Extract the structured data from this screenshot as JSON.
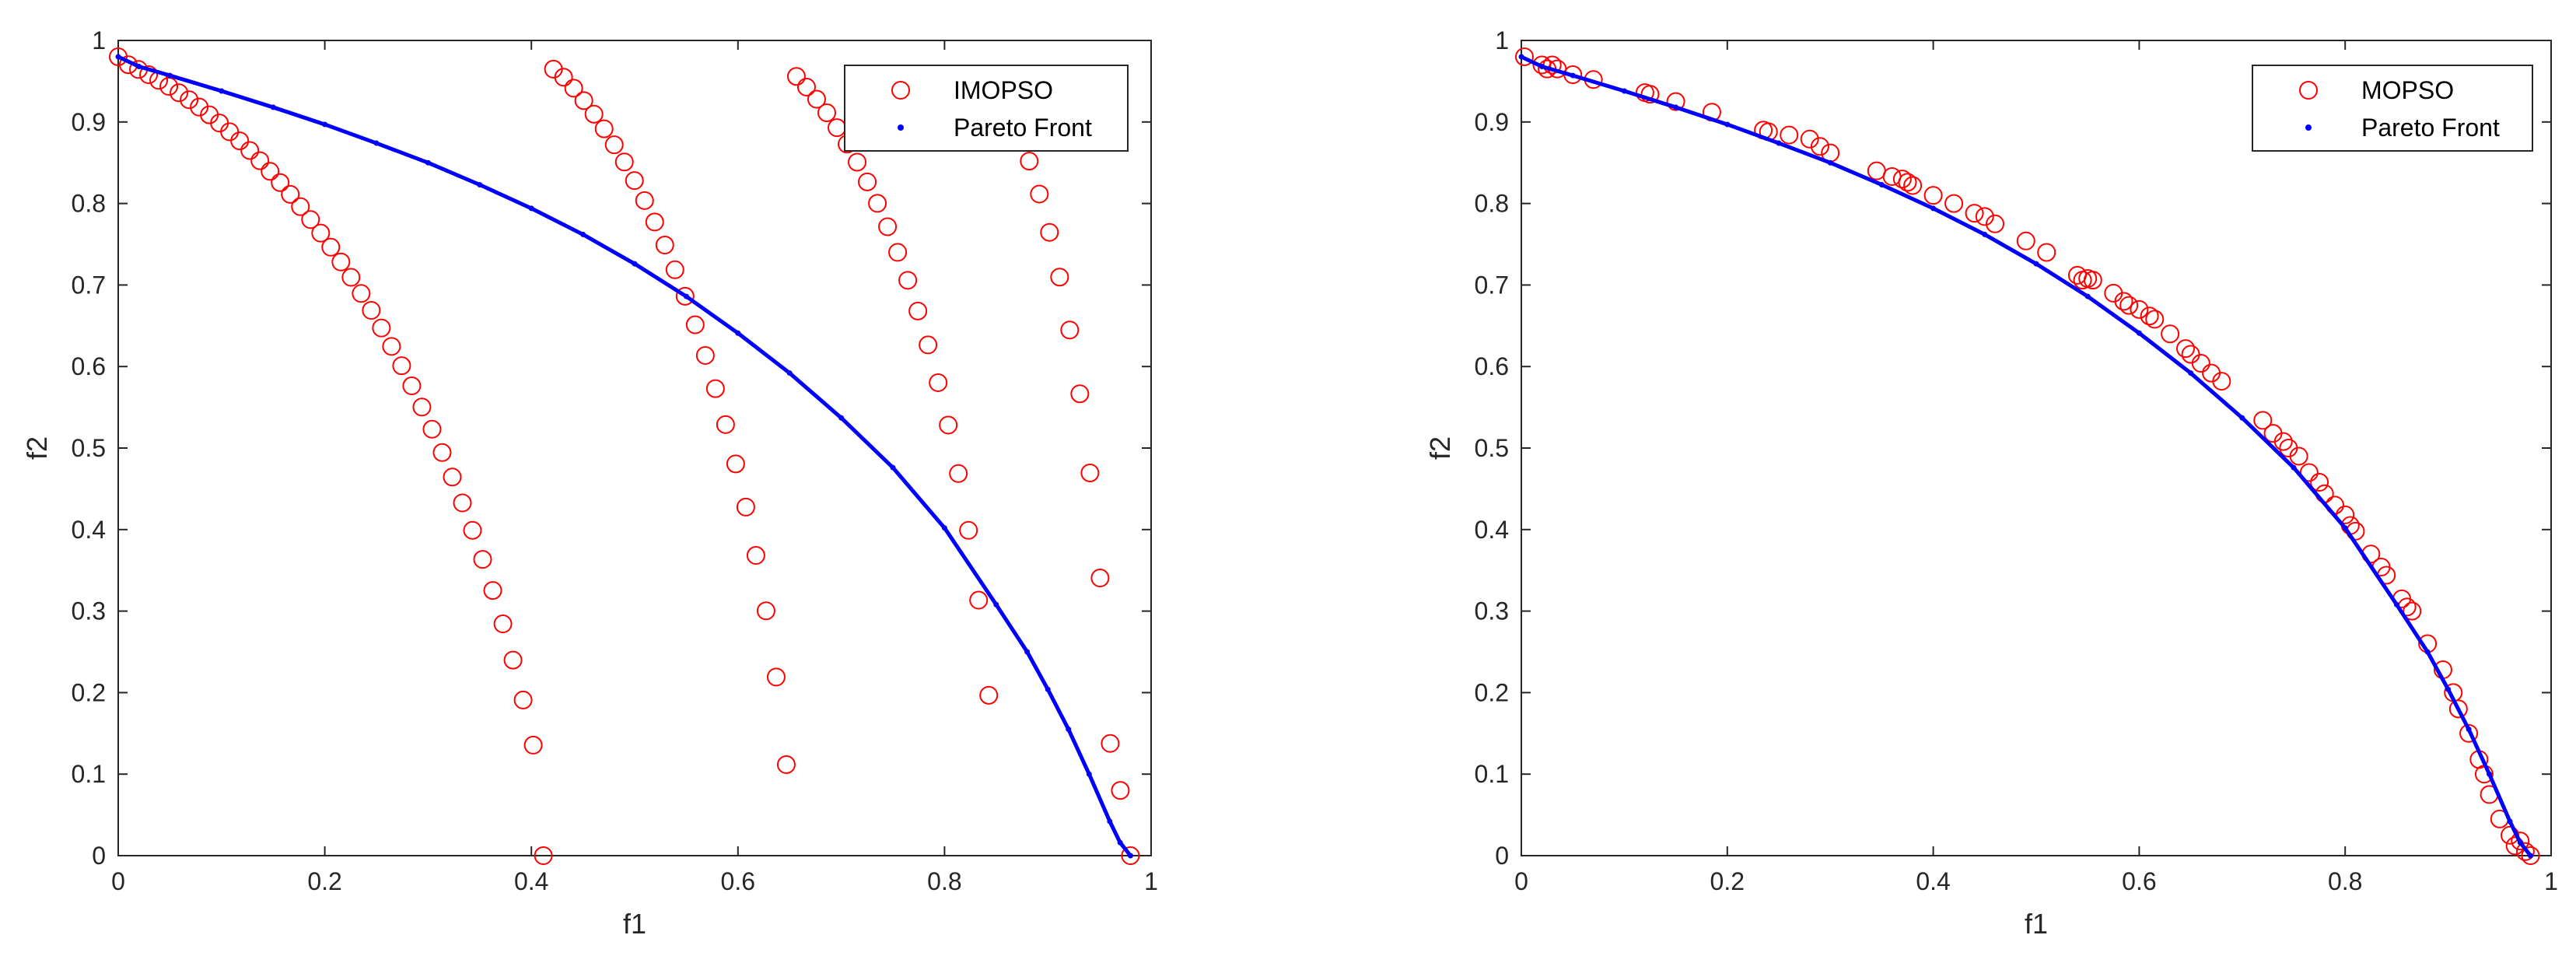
{
  "chart_data": [
    {
      "type": "scatter",
      "xlabel": "f1",
      "ylabel": "f2",
      "xlim": [
        0,
        1
      ],
      "ylim": [
        0,
        1
      ],
      "x_ticks": [
        "0",
        "0.2",
        "0.4",
        "0.6",
        "0.8",
        "1"
      ],
      "y_ticks": [
        "0",
        "0.1",
        "0.2",
        "0.3",
        "0.4",
        "0.5",
        "0.6",
        "0.7",
        "0.8",
        "0.9",
        "1"
      ],
      "grid": false,
      "legend_position": "top-right",
      "legend": [
        "IMOPSO",
        "Pareto Front"
      ],
      "series": [
        {
          "name": "IMOPSO",
          "marker": "circle-open",
          "color": "#ff0000",
          "x": [
            0.0,
            0.0098,
            0.0196,
            0.0294,
            0.0392,
            0.049,
            0.0588,
            0.0686,
            0.0784,
            0.0882,
            0.098,
            0.1078,
            0.1176,
            0.1274,
            0.1372,
            0.147,
            0.1568,
            0.1666,
            0.1764,
            0.1862,
            0.196,
            0.2058,
            0.2156,
            0.2254,
            0.2352,
            0.245,
            0.2548,
            0.2646,
            0.2744,
            0.2842,
            0.294,
            0.3038,
            0.3136,
            0.3234,
            0.3332,
            0.343,
            0.3528,
            0.3626,
            0.3724,
            0.3822,
            0.392,
            0.4018,
            0.4116,
            0.4214,
            0.4312,
            0.441,
            0.4508,
            0.4606,
            0.4704,
            0.4802,
            0.49,
            0.4998,
            0.5096,
            0.5194,
            0.5292,
            0.539,
            0.5488,
            0.5586,
            0.5684,
            0.5782,
            0.588,
            0.5978,
            0.6076,
            0.6174,
            0.6272,
            0.637,
            0.6468,
            0.6566,
            0.6664,
            0.6762,
            0.686,
            0.6958,
            0.7056,
            0.7154,
            0.7252,
            0.735,
            0.7448,
            0.7546,
            0.7644,
            0.7742,
            0.784,
            0.7938,
            0.8036,
            0.8134,
            0.8232,
            0.833,
            0.8428,
            0.8526,
            0.8624,
            0.8722,
            0.882,
            0.8918,
            0.9016,
            0.9114,
            0.9212,
            0.931,
            0.9408,
            0.9506,
            0.9604,
            0.9702,
            0.98
          ],
          "y": [
            0.98,
            0.9702,
            0.9644,
            0.958,
            0.9511,
            0.9437,
            0.9358,
            0.9273,
            0.9183,
            0.9088,
            0.8987,
            0.888,
            0.8768,
            0.865,
            0.8525,
            0.8394,
            0.8256,
            0.8112,
            0.7961,
            0.7803,
            0.7637,
            0.7464,
            0.7283,
            0.7094,
            0.6896,
            0.6689,
            0.6473,
            0.6247,
            0.601,
            0.5763,
            0.5503,
            0.5231,
            0.4945,
            0.4644,
            0.4327,
            0.3991,
            0.3634,
            0.3253,
            0.2843,
            0.2399,
            0.1909,
            0.1356,
            0.0,
            0.9648,
            0.9549,
            0.9414,
            0.9262,
            0.9096,
            0.8916,
            0.872,
            0.8509,
            0.8281,
            0.8036,
            0.7773,
            0.749,
            0.7187,
            0.6862,
            0.6512,
            0.6136,
            0.5729,
            0.5288,
            0.4806,
            0.4276,
            0.3683,
            0.3003,
            0.2191,
            0.1117,
            0.9559,
            0.9428,
            0.9279,
            0.9113,
            0.893,
            0.8728,
            0.8507,
            0.8265,
            0.8002,
            0.7715,
            0.7401,
            0.7058,
            0.6681,
            0.6265,
            0.5802,
            0.5282,
            0.4687,
            0.3991,
            0.3134,
            0.1967,
            0.9418,
            0.9166,
            0.8868,
            0.852,
            0.8116,
            0.7646,
            0.7097,
            0.6448,
            0.5666,
            0.4695,
            0.3406,
            0.1377,
            0.08,
            0.0
          ]
        },
        {
          "name": "Pareto Front",
          "marker": "dot",
          "color": "#0000ff",
          "x": [
            0.0,
            0.02,
            0.05,
            0.1,
            0.15,
            0.2,
            0.25,
            0.3,
            0.35,
            0.4,
            0.45,
            0.5,
            0.55,
            0.6,
            0.65,
            0.7,
            0.75,
            0.8,
            0.85,
            0.88,
            0.9,
            0.92,
            0.94,
            0.96,
            0.97,
            0.98
          ],
          "y": [
            0.98,
            0.968,
            0.957,
            0.938,
            0.918,
            0.897,
            0.874,
            0.85,
            0.823,
            0.794,
            0.762,
            0.726,
            0.686,
            0.641,
            0.592,
            0.537,
            0.476,
            0.402,
            0.308,
            0.25,
            0.204,
            0.155,
            0.1,
            0.042,
            0.016,
            0.0
          ]
        }
      ]
    },
    {
      "type": "scatter",
      "xlabel": "f1",
      "ylabel": "f2",
      "xlim": [
        0,
        1
      ],
      "ylim": [
        0,
        1
      ],
      "x_ticks": [
        "0",
        "0.2",
        "0.4",
        "0.6",
        "0.8",
        "1"
      ],
      "y_ticks": [
        "0",
        "0.1",
        "0.2",
        "0.3",
        "0.4",
        "0.5",
        "0.6",
        "0.7",
        "0.8",
        "0.9",
        "1"
      ],
      "grid": false,
      "legend_position": "top-right",
      "legend": [
        "MOPSO",
        "Pareto Front"
      ],
      "series": [
        {
          "name": "MOPSO",
          "marker": "circle-open",
          "color": "#ff0000",
          "x": [
            0.003,
            0.02,
            0.025,
            0.03,
            0.035,
            0.05,
            0.07,
            0.12,
            0.125,
            0.15,
            0.185,
            0.235,
            0.24,
            0.26,
            0.28,
            0.29,
            0.3,
            0.345,
            0.36,
            0.37,
            0.375,
            0.38,
            0.4,
            0.42,
            0.44,
            0.45,
            0.46,
            0.49,
            0.51,
            0.54,
            0.545,
            0.55,
            0.555,
            0.575,
            0.585,
            0.59,
            0.6,
            0.61,
            0.615,
            0.63,
            0.645,
            0.65,
            0.66,
            0.67,
            0.68,
            0.72,
            0.73,
            0.74,
            0.745,
            0.755,
            0.765,
            0.775,
            0.78,
            0.79,
            0.8,
            0.805,
            0.81,
            0.825,
            0.835,
            0.84,
            0.855,
            0.86,
            0.865,
            0.88,
            0.895,
            0.905,
            0.91,
            0.92,
            0.93,
            0.935,
            0.94,
            0.95,
            0.96,
            0.965,
            0.97,
            0.975,
            0.98
          ],
          "y": [
            0.98,
            0.97,
            0.965,
            0.97,
            0.965,
            0.958,
            0.952,
            0.936,
            0.934,
            0.925,
            0.912,
            0.89,
            0.888,
            0.884,
            0.879,
            0.87,
            0.862,
            0.84,
            0.833,
            0.83,
            0.826,
            0.822,
            0.81,
            0.8,
            0.788,
            0.784,
            0.775,
            0.754,
            0.74,
            0.712,
            0.706,
            0.708,
            0.706,
            0.69,
            0.68,
            0.675,
            0.67,
            0.662,
            0.658,
            0.64,
            0.622,
            0.615,
            0.604,
            0.592,
            0.582,
            0.534,
            0.518,
            0.508,
            0.5,
            0.49,
            0.47,
            0.458,
            0.444,
            0.43,
            0.418,
            0.405,
            0.398,
            0.37,
            0.354,
            0.344,
            0.315,
            0.305,
            0.3,
            0.26,
            0.228,
            0.2,
            0.18,
            0.15,
            0.118,
            0.1,
            0.075,
            0.045,
            0.025,
            0.012,
            0.018,
            0.005,
            0.0
          ]
        },
        {
          "name": "Pareto Front",
          "marker": "dot",
          "color": "#0000ff",
          "x": [
            0.0,
            0.02,
            0.05,
            0.1,
            0.15,
            0.2,
            0.25,
            0.3,
            0.35,
            0.4,
            0.45,
            0.5,
            0.55,
            0.6,
            0.65,
            0.7,
            0.75,
            0.8,
            0.85,
            0.88,
            0.9,
            0.92,
            0.94,
            0.96,
            0.97,
            0.98
          ],
          "y": [
            0.98,
            0.968,
            0.957,
            0.938,
            0.918,
            0.897,
            0.874,
            0.85,
            0.823,
            0.794,
            0.762,
            0.726,
            0.686,
            0.641,
            0.592,
            0.537,
            0.476,
            0.402,
            0.308,
            0.25,
            0.204,
            0.155,
            0.1,
            0.042,
            0.016,
            0.0
          ]
        }
      ]
    }
  ]
}
